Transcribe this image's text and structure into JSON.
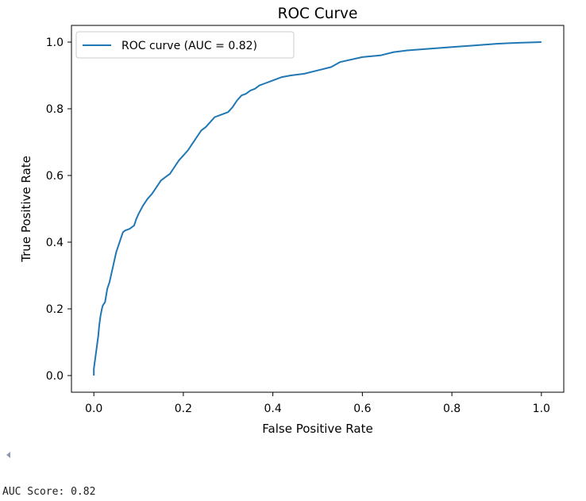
{
  "chart_data": {
    "type": "line",
    "title": "ROC Curve",
    "xlabel": "False Positive Rate",
    "ylabel": "True Positive Rate",
    "xlim": [
      -0.05,
      1.05
    ],
    "ylim": [
      -0.05,
      1.05
    ],
    "xticks": [
      0.0,
      0.2,
      0.4,
      0.6,
      0.8,
      1.0
    ],
    "yticks": [
      0.0,
      0.2,
      0.4,
      0.6,
      0.8,
      1.0
    ],
    "xtick_labels": [
      "0.0",
      "0.2",
      "0.4",
      "0.6",
      "0.8",
      "1.0"
    ],
    "ytick_labels": [
      "0.0",
      "0.2",
      "0.4",
      "0.6",
      "0.8",
      "1.0"
    ],
    "grid": false,
    "legend_position": "upper left",
    "series": [
      {
        "name": "ROC curve (AUC = 0.82)",
        "color": "#1f77b4",
        "x": [
          0.0,
          0.0,
          0.003,
          0.005,
          0.007,
          0.01,
          0.012,
          0.015,
          0.018,
          0.02,
          0.025,
          0.03,
          0.035,
          0.04,
          0.045,
          0.05,
          0.055,
          0.06,
          0.065,
          0.07,
          0.08,
          0.09,
          0.095,
          0.1,
          0.11,
          0.12,
          0.13,
          0.14,
          0.15,
          0.16,
          0.17,
          0.18,
          0.19,
          0.2,
          0.21,
          0.22,
          0.23,
          0.24,
          0.25,
          0.26,
          0.27,
          0.28,
          0.3,
          0.31,
          0.32,
          0.33,
          0.34,
          0.35,
          0.36,
          0.37,
          0.38,
          0.4,
          0.42,
          0.44,
          0.47,
          0.5,
          0.53,
          0.55,
          0.6,
          0.64,
          0.67,
          0.7,
          0.75,
          0.8,
          0.85,
          0.9,
          0.95,
          1.0
        ],
        "y": [
          0.0,
          0.02,
          0.05,
          0.07,
          0.09,
          0.12,
          0.15,
          0.18,
          0.2,
          0.21,
          0.22,
          0.26,
          0.28,
          0.31,
          0.34,
          0.37,
          0.39,
          0.41,
          0.43,
          0.435,
          0.44,
          0.45,
          0.47,
          0.485,
          0.51,
          0.53,
          0.545,
          0.565,
          0.585,
          0.595,
          0.605,
          0.625,
          0.645,
          0.66,
          0.675,
          0.695,
          0.715,
          0.735,
          0.745,
          0.76,
          0.775,
          0.78,
          0.79,
          0.805,
          0.825,
          0.84,
          0.845,
          0.855,
          0.86,
          0.87,
          0.875,
          0.885,
          0.895,
          0.9,
          0.905,
          0.915,
          0.925,
          0.94,
          0.955,
          0.96,
          0.97,
          0.975,
          0.98,
          0.985,
          0.99,
          0.995,
          0.998,
          1.0
        ]
      }
    ]
  },
  "output": {
    "auc_text": "AUC Score: 0.82"
  }
}
